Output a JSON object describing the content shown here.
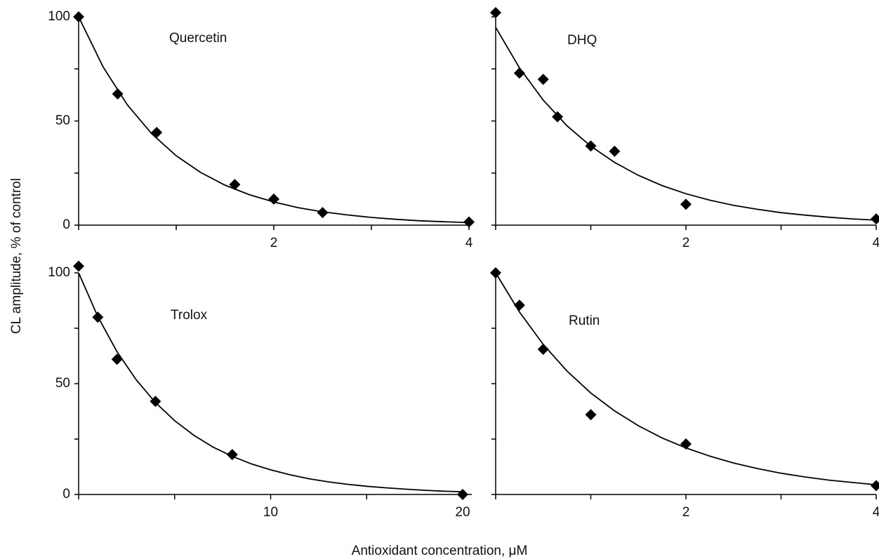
{
  "axis_labels": {
    "x": "Antioxidant concentration, μM",
    "y": "CL amplitude, % of control"
  },
  "chart_data": [
    {
      "type": "scatter",
      "title": "Quercetin",
      "color": "#000000",
      "x": [
        0,
        0.4,
        0.8,
        1.6,
        2,
        2.5,
        4
      ],
      "values": [
        100,
        63,
        44.5,
        19.5,
        12.5,
        6,
        1.5
      ],
      "fit_x": [
        0,
        0.25,
        0.5,
        0.75,
        1,
        1.25,
        1.5,
        1.75,
        2,
        2.25,
        2.5,
        2.75,
        3,
        3.25,
        3.5,
        3.75,
        4
      ],
      "fit_values": [
        100,
        76.0,
        57.7,
        43.8,
        33.3,
        25.3,
        19.2,
        14.6,
        11.1,
        8.4,
        6.4,
        4.9,
        3.7,
        2.8,
        2.1,
        1.6,
        1.2
      ],
      "xlim": [
        0,
        4
      ],
      "ylim": [
        0,
        100
      ],
      "xticks": [
        2,
        4
      ],
      "xminorticks": [
        0,
        1,
        3
      ],
      "yticks": [
        0,
        50,
        100
      ],
      "yminorticks": [
        25,
        75
      ],
      "show_ytick_labels": true
    },
    {
      "type": "scatter",
      "title": "DHQ",
      "color": "#000000",
      "x": [
        0,
        0.25,
        0.5,
        0.65,
        1,
        1.25,
        2,
        4
      ],
      "values": [
        102,
        73,
        70,
        52,
        38,
        35.5,
        10,
        3
      ],
      "fit_x": [
        0,
        0.25,
        0.5,
        0.75,
        1,
        1.25,
        1.5,
        1.75,
        2,
        2.25,
        2.5,
        2.75,
        3,
        3.25,
        3.5,
        3.75,
        4
      ],
      "fit_values": [
        95,
        75.5,
        60.0,
        47.7,
        37.9,
        30.1,
        23.9,
        19.0,
        15.1,
        12.0,
        9.5,
        7.6,
        6.0,
        4.8,
        3.8,
        3.0,
        2.4
      ],
      "xlim": [
        0,
        4
      ],
      "ylim": [
        0,
        100
      ],
      "xticks": [
        2,
        4
      ],
      "xminorticks": [
        0,
        1,
        3
      ],
      "yticks": [
        0,
        50,
        100
      ],
      "yminorticks": [
        25,
        75
      ],
      "show_ytick_labels": false
    },
    {
      "type": "scatter",
      "title": "Trolox",
      "color": "#000000",
      "x": [
        0,
        1,
        2,
        4,
        8,
        20
      ],
      "values": [
        103,
        80,
        61,
        42,
        18,
        0
      ],
      "fit_x": [
        0,
        1,
        2,
        3,
        4,
        5,
        6,
        7,
        8,
        9,
        10,
        11,
        12,
        13,
        14,
        15,
        16,
        17,
        18,
        19,
        20
      ],
      "fit_values": [
        100,
        80.3,
        64.4,
        51.7,
        41.5,
        33.3,
        26.7,
        21.4,
        17.2,
        13.8,
        11.1,
        8.9,
        7.1,
        5.7,
        4.6,
        3.7,
        3.0,
        2.4,
        1.9,
        1.5,
        1.2
      ],
      "xlim": [
        0,
        20
      ],
      "ylim": [
        0,
        100
      ],
      "xticks": [
        10,
        20
      ],
      "xminorticks": [
        0,
        5,
        15
      ],
      "yticks": [
        0,
        50,
        100
      ],
      "yminorticks": [
        25,
        75
      ],
      "show_ytick_labels": true
    },
    {
      "type": "scatter",
      "title": "Rutin",
      "color": "#000000",
      "x": [
        0,
        0.25,
        0.5,
        1,
        2,
        4
      ],
      "values": [
        100,
        85.4,
        65.5,
        36,
        22.8,
        4
      ],
      "fit_x": [
        0,
        0.25,
        0.5,
        0.75,
        1,
        1.25,
        1.5,
        1.75,
        2,
        2.25,
        2.5,
        2.75,
        3,
        3.25,
        3.5,
        3.75,
        4
      ],
      "fit_values": [
        100,
        82.3,
        67.7,
        55.7,
        45.8,
        37.7,
        31.0,
        25.5,
        21.0,
        17.3,
        14.2,
        11.7,
        9.6,
        7.9,
        6.5,
        5.4,
        4.4
      ],
      "xlim": [
        0,
        4
      ],
      "ylim": [
        0,
        100
      ],
      "xticks": [
        2,
        4
      ],
      "xminorticks": [
        0,
        1,
        3
      ],
      "yticks": [
        0,
        50,
        100
      ],
      "yminorticks": [
        25,
        75
      ],
      "show_ytick_labels": false
    }
  ]
}
